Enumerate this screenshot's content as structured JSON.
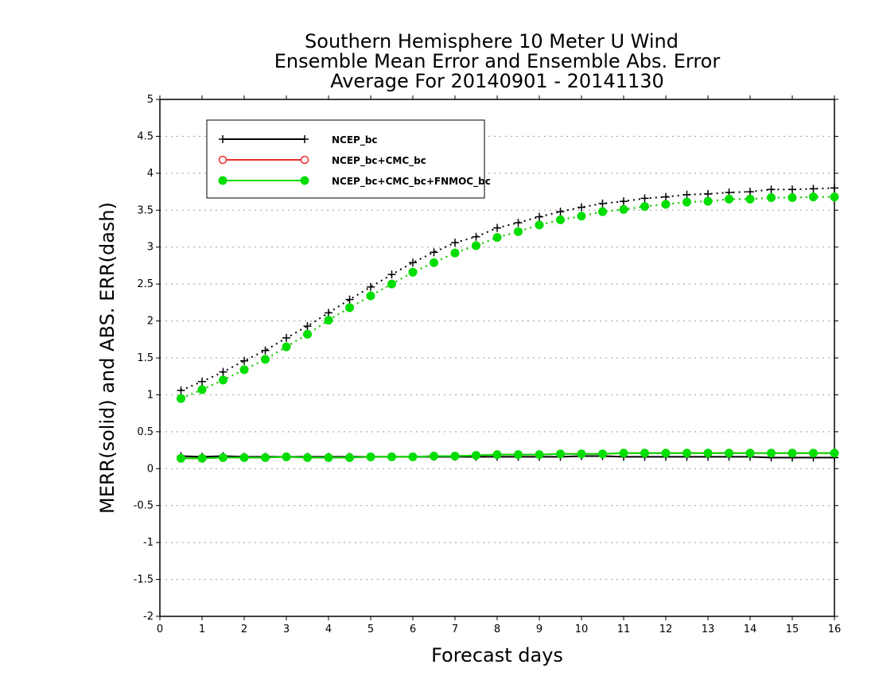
{
  "chart_data": {
    "type": "line",
    "title_lines": [
      "Southern Hemisphere 10 Meter U Wind",
      "Ensemble Mean Error and Ensemble Abs. Error",
      "Average For 20140901 - 20141130"
    ],
    "xlabel": "Forecast days",
    "ylabel": "MERR(solid) and ABS. ERR(dash)",
    "xlim": [
      0,
      16
    ],
    "ylim": [
      -2,
      5
    ],
    "x_ticks": [
      "0",
      "1",
      "2",
      "3",
      "4",
      "5",
      "6",
      "7",
      "8",
      "9",
      "10",
      "11",
      "12",
      "13",
      "14",
      "15",
      "16"
    ],
    "y_ticks": [
      "-2",
      "-1.5",
      "-1",
      "-0.5",
      "0",
      "0.5",
      "1",
      "1.5",
      "2",
      "2.5",
      "3",
      "3.5",
      "4",
      "4.5",
      "5"
    ],
    "grid": "horizontal dotted",
    "legend_position": "top-left",
    "x": [
      0.5,
      1,
      1.5,
      2,
      2.5,
      3,
      3.5,
      4,
      4.5,
      5,
      5.5,
      6,
      6.5,
      7,
      7.5,
      8,
      8.5,
      9,
      9.5,
      10,
      10.5,
      11,
      11.5,
      12,
      12.5,
      13,
      13.5,
      14,
      14.5,
      15,
      15.5,
      16
    ],
    "series": [
      {
        "name": "NCEP_bc",
        "color": "#000000",
        "marker": "plus",
        "merr": [
          0.17,
          0.16,
          0.17,
          0.16,
          0.16,
          0.16,
          0.16,
          0.16,
          0.16,
          0.16,
          0.16,
          0.16,
          0.16,
          0.16,
          0.16,
          0.16,
          0.16,
          0.16,
          0.16,
          0.17,
          0.17,
          0.16,
          0.16,
          0.16,
          0.16,
          0.16,
          0.16,
          0.16,
          0.15,
          0.15,
          0.15,
          0.15
        ],
        "abs_err": [
          1.06,
          1.18,
          1.31,
          1.46,
          1.6,
          1.77,
          1.93,
          2.11,
          2.29,
          2.46,
          2.63,
          2.79,
          2.93,
          3.06,
          3.14,
          3.26,
          3.33,
          3.41,
          3.48,
          3.54,
          3.59,
          3.62,
          3.66,
          3.68,
          3.71,
          3.72,
          3.74,
          3.75,
          3.78,
          3.78,
          3.79,
          3.8
        ]
      },
      {
        "name": "NCEP_bc+CMC_bc",
        "color": "#ee2b2b",
        "marker": "open-circle",
        "merr": [
          0.14,
          0.14,
          0.15,
          0.15,
          0.15,
          0.16,
          0.15,
          0.15,
          0.15,
          0.16,
          0.16,
          0.16,
          0.17,
          0.17,
          0.18,
          0.19,
          0.19,
          0.19,
          0.2,
          0.2,
          0.2,
          0.21,
          0.21,
          0.21,
          0.21,
          0.21,
          0.21,
          0.21,
          0.21,
          0.21,
          0.21,
          0.21
        ],
        "abs_err": [
          0.95,
          1.07,
          1.2,
          1.34,
          1.48,
          1.65,
          1.82,
          2.01,
          2.18,
          2.34,
          2.5,
          2.66,
          2.79,
          2.92,
          3.02,
          3.13,
          3.21,
          3.3,
          3.37,
          3.42,
          3.48,
          3.51,
          3.55,
          3.58,
          3.61,
          3.62,
          3.65,
          3.65,
          3.67,
          3.67,
          3.68,
          3.68
        ]
      },
      {
        "name": "NCEP_bc+CMC_bc+FNMOC_bc",
        "color": "#00dd00",
        "marker": "filled-circle",
        "merr": [
          0.14,
          0.14,
          0.15,
          0.15,
          0.15,
          0.16,
          0.15,
          0.15,
          0.15,
          0.16,
          0.16,
          0.16,
          0.17,
          0.17,
          0.18,
          0.19,
          0.19,
          0.19,
          0.2,
          0.2,
          0.2,
          0.21,
          0.21,
          0.21,
          0.21,
          0.21,
          0.21,
          0.21,
          0.21,
          0.21,
          0.21,
          0.21
        ],
        "abs_err": [
          0.95,
          1.07,
          1.2,
          1.34,
          1.48,
          1.65,
          1.82,
          2.01,
          2.18,
          2.34,
          2.5,
          2.66,
          2.79,
          2.92,
          3.02,
          3.13,
          3.21,
          3.3,
          3.37,
          3.42,
          3.48,
          3.51,
          3.55,
          3.58,
          3.61,
          3.62,
          3.65,
          3.65,
          3.67,
          3.67,
          3.68,
          3.68
        ]
      }
    ]
  }
}
